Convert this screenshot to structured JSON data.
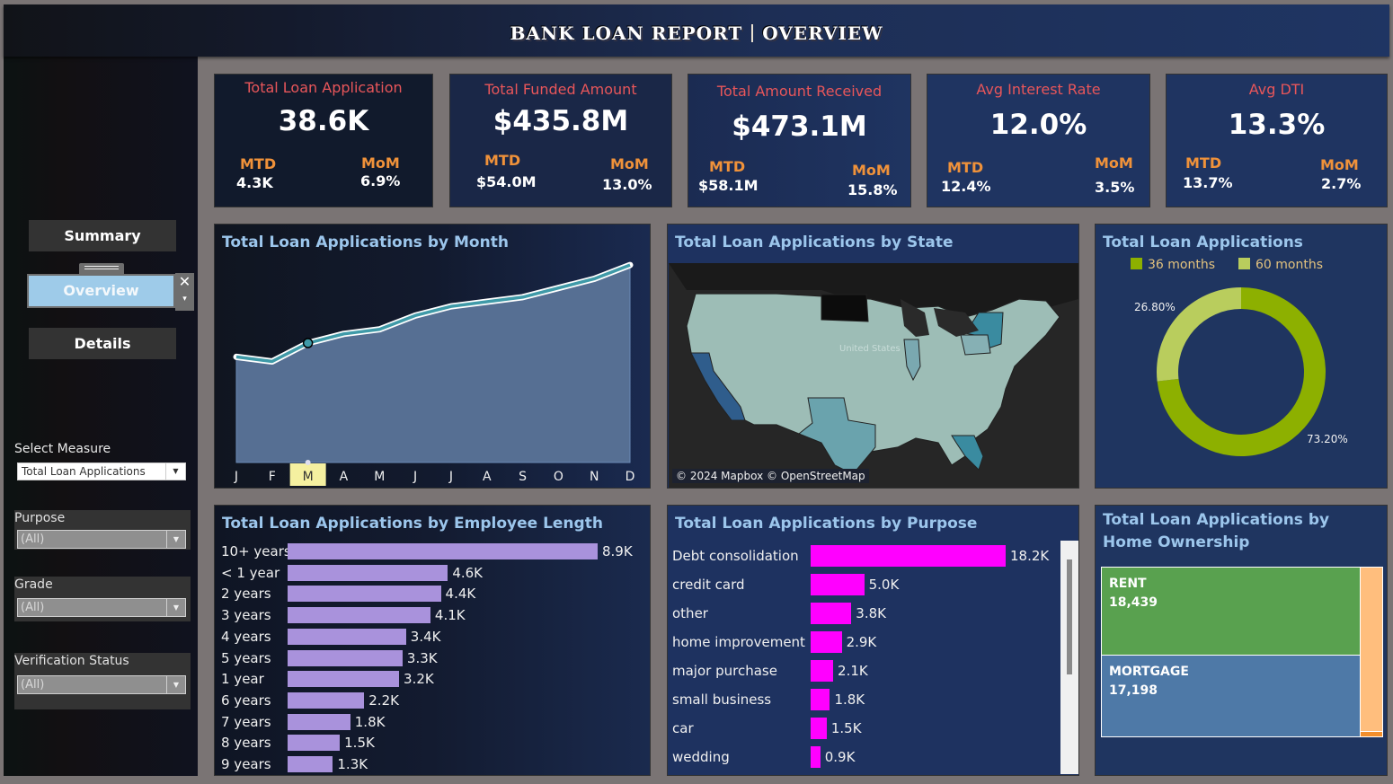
{
  "header": {
    "title_left": "BANK LOAN REPORT",
    "title_right": "OVERVIEW"
  },
  "nav": {
    "buttons": [
      {
        "label": "Summary",
        "active": false
      },
      {
        "label": "Overview",
        "active": true
      },
      {
        "label": "Details",
        "active": false
      }
    ],
    "close_glyph": "✕",
    "dropdown_glyph": "▾"
  },
  "filters": {
    "measure": {
      "label": "Select Measure",
      "value": "Total Loan Applications"
    },
    "purpose": {
      "label": "Purpose",
      "value": "(All)"
    },
    "grade": {
      "label": "Grade",
      "value": "(All)"
    },
    "verification": {
      "label": "Verification Status",
      "value": "(All)"
    }
  },
  "kpis": [
    {
      "title": "Total Loan Application",
      "value": "38.6K",
      "mtd_label": "MTD",
      "mtd": "4.3K",
      "mom_label": "MoM",
      "mom": "6.9%"
    },
    {
      "title": "Total Funded Amount",
      "value": "$435.8M",
      "mtd_label": "MTD",
      "mtd": "$54.0M",
      "mom_label": "MoM",
      "mom": "13.0%"
    },
    {
      "title": "Total Amount Received",
      "value": "$473.1M",
      "mtd_label": "MTD",
      "mtd": "$58.1M",
      "mom_label": "MoM",
      "mom": "15.8%"
    },
    {
      "title": "Avg Interest Rate",
      "value": "12.0%",
      "mtd_label": "MTD",
      "mtd": "12.4%",
      "mom_label": "MoM",
      "mom": "3.5%"
    },
    {
      "title": "Avg DTI",
      "value": "13.3%",
      "mtd_label": "MTD",
      "mtd": "13.7%",
      "mom_label": "MoM",
      "mom": "2.7%"
    }
  ],
  "colors": {
    "kpi_title": "#e8565a",
    "kpi_sub_label": "#f0923a",
    "panel_title": "#9cc6ec",
    "area_fill": "#566f93",
    "line": "#3f9aa8",
    "emp_bar": "#a992dc",
    "purpose_bar": "#ff00ff",
    "term_36": "#8db000",
    "term_60": "#b9cd5d",
    "rent": "#59a14f",
    "mortgage": "#4e79a7",
    "own": "#ffbe7d",
    "other": "#f28e2b",
    "highlight_month": "#f5f0a0"
  },
  "chart_data": [
    {
      "type": "area",
      "title": "Total Loan Applications by Month",
      "categories": [
        "J",
        "F",
        "M",
        "A",
        "M",
        "J",
        "J",
        "A",
        "S",
        "O",
        "N",
        "D"
      ],
      "values": [
        2300,
        2200,
        2600,
        2800,
        2900,
        3200,
        3400,
        3500,
        3600,
        3800,
        4000,
        4300
      ],
      "ylim": [
        0,
        4400
      ],
      "highlighted_category_index": 2,
      "grid": false
    },
    {
      "type": "map",
      "title": "Total Loan Applications by State",
      "highlighted_states": [
        "California",
        "Texas",
        "New York",
        "Florida",
        "Illinois",
        "Pennsylvania",
        "New Jersey"
      ],
      "map_label": "United States",
      "credit": "© 2024 Mapbox © OpenStreetMap"
    },
    {
      "type": "pie",
      "title": "Total Loan Applications",
      "legend": [
        "36 months",
        "60 months"
      ],
      "legend_position": "top",
      "values": [
        73.2,
        26.8
      ],
      "labels": [
        "73.20%",
        "26.80%"
      ]
    },
    {
      "type": "bar",
      "title": "Total Loan Applications by Employee Length",
      "categories": [
        "10+ years",
        "< 1 year",
        "2 years",
        "3 years",
        "4 years",
        "5 years",
        "1 year",
        "6 years",
        "7 years",
        "8 years",
        "9 years"
      ],
      "values": [
        8.9,
        4.6,
        4.4,
        4.1,
        3.4,
        3.3,
        3.2,
        2.2,
        1.8,
        1.5,
        1.3
      ],
      "labels": [
        "8.9K",
        "4.6K",
        "4.4K",
        "4.1K",
        "3.4K",
        "3.3K",
        "3.2K",
        "2.2K",
        "1.8K",
        "1.5K",
        "1.3K"
      ],
      "orientation": "horizontal"
    },
    {
      "type": "bar",
      "title": "Total Loan Applications by Purpose",
      "categories": [
        "Debt consolidation",
        "credit card",
        "other",
        "home improvement",
        "major purchase",
        "small business",
        "car",
        "wedding"
      ],
      "values": [
        18.2,
        5.0,
        3.8,
        2.9,
        2.1,
        1.8,
        1.5,
        0.9
      ],
      "labels": [
        "18.2K",
        "5.0K",
        "3.8K",
        "2.9K",
        "2.1K",
        "1.8K",
        "1.5K",
        "0.9K"
      ],
      "orientation": "horizontal"
    },
    {
      "type": "treemap",
      "title": "Total Loan Applications by Home Ownership",
      "categories": [
        "RENT",
        "MORTGAGE"
      ],
      "values": [
        18439,
        17198
      ],
      "labels": [
        "18,439",
        "17,198"
      ]
    }
  ]
}
